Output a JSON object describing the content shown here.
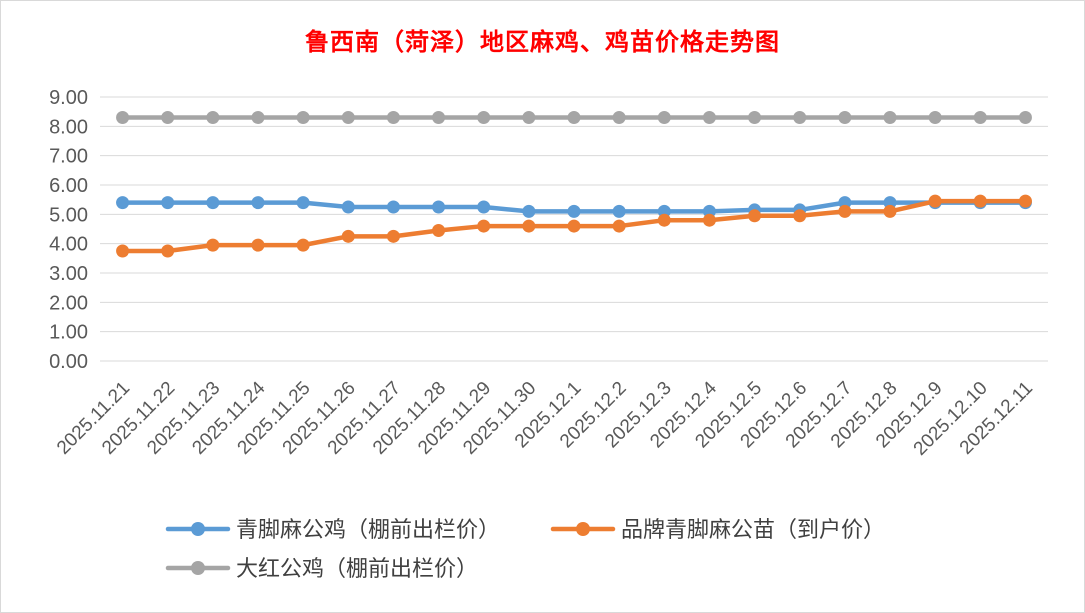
{
  "chart_data": {
    "type": "line",
    "title": "鲁西南（菏泽）地区麻鸡、鸡苗价格走势图",
    "xlabel": "",
    "ylabel": "",
    "ylim": [
      0,
      9
    ],
    "yticks": [
      "0.00",
      "1.00",
      "2.00",
      "3.00",
      "4.00",
      "5.00",
      "6.00",
      "7.00",
      "8.00",
      "9.00"
    ],
    "grid": true,
    "legend_position": "bottom",
    "categories": [
      "2025.11.21",
      "2025.11.22",
      "2025.11.23",
      "2025.11.24",
      "2025.11.25",
      "2025.11.26",
      "2025.11.27",
      "2025.11.28",
      "2025.11.29",
      "2025.11.30",
      "2025.12.1",
      "2025.12.2",
      "2025.12.3",
      "2025.12.4",
      "2025.12.5",
      "2025.12.6",
      "2025.12.7",
      "2025.12.8",
      "2025.12.9",
      "2025.12.10",
      "2025.12.11"
    ],
    "series": [
      {
        "name": "青脚麻公鸡（棚前出栏价）",
        "color": "#5b9bd5",
        "values": [
          5.4,
          5.4,
          5.4,
          5.4,
          5.4,
          5.25,
          5.25,
          5.25,
          5.25,
          5.1,
          5.1,
          5.1,
          5.1,
          5.1,
          5.15,
          5.15,
          5.4,
          5.4,
          5.4,
          5.4,
          5.4
        ]
      },
      {
        "name": "品牌青脚麻公苗（到户价）",
        "color": "#ed7d31",
        "values": [
          3.75,
          3.75,
          3.95,
          3.95,
          3.95,
          4.25,
          4.25,
          4.45,
          4.6,
          4.6,
          4.6,
          4.6,
          4.8,
          4.8,
          4.95,
          4.95,
          5.1,
          5.1,
          5.45,
          5.45,
          5.45
        ]
      },
      {
        "name": "大红公鸡（棚前出栏价）",
        "color": "#a5a5a5",
        "values": [
          8.3,
          8.3,
          8.3,
          8.3,
          8.3,
          8.3,
          8.3,
          8.3,
          8.3,
          8.3,
          8.3,
          8.3,
          8.3,
          8.3,
          8.3,
          8.3,
          8.3,
          8.3,
          8.3,
          8.3,
          8.3
        ]
      }
    ]
  }
}
